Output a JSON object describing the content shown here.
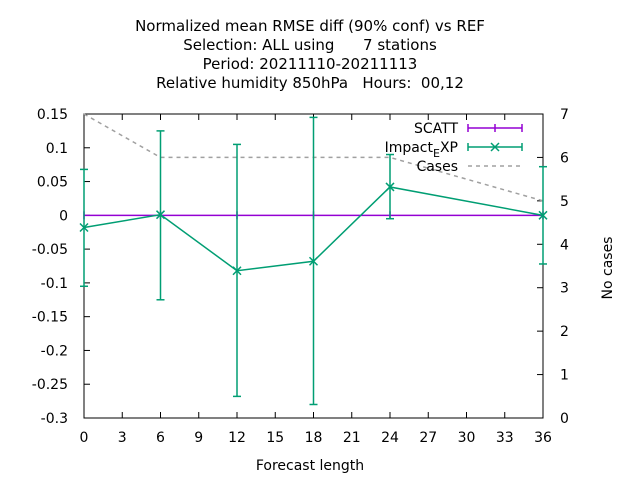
{
  "chart_data": {
    "type": "line",
    "title_lines": [
      "Normalized mean RMSE diff (90% conf) vs REF",
      "Selection: ALL using      7 stations",
      "Period: 20211110-20211113",
      "Relative humidity 850hPa   Hours:  00,12"
    ],
    "xlabel": "Forecast length",
    "ylabel": "",
    "y2label": "No cases",
    "xlim": [
      0,
      36
    ],
    "ylim": [
      -0.3,
      0.15
    ],
    "y2lim": [
      0,
      7
    ],
    "xticks": [
      "0",
      "3",
      "6",
      "9",
      "12",
      "15",
      "18",
      "21",
      "24",
      "27",
      "30",
      "33",
      "36"
    ],
    "yticks": [
      "0.15",
      "0.1",
      "0.05",
      "0",
      "-0.05",
      "-0.1",
      "-0.15",
      "-0.2",
      "-0.25",
      "-0.3"
    ],
    "y2ticks": [
      "7",
      "6",
      "5",
      "4",
      "3",
      "2",
      "1",
      "0"
    ],
    "legend_position": "top-right",
    "series": [
      {
        "name": "SCATT",
        "color": "#9400d3",
        "x": [
          0,
          6,
          12,
          18,
          24,
          36
        ],
        "y": [
          0,
          0,
          0,
          0,
          0,
          0
        ]
      },
      {
        "name": "Impact",
        "name_sub": "E",
        "name_suffix": "XP",
        "color": "#009e73",
        "x": [
          0,
          6,
          12,
          18,
          24,
          36
        ],
        "y": [
          -0.018,
          0.001,
          -0.082,
          -0.068,
          0.042,
          0.0
        ],
        "err_low": [
          -0.105,
          -0.125,
          -0.268,
          -0.28,
          -0.005,
          -0.072
        ],
        "err_high": [
          0.068,
          0.125,
          0.105,
          0.145,
          0.09,
          0.072
        ]
      },
      {
        "name": "Cases",
        "color": "#a0a0a0",
        "axis": "y2",
        "x": [
          0,
          6,
          12,
          18,
          24,
          36
        ],
        "y": [
          7,
          6,
          6,
          6,
          6,
          5
        ]
      }
    ]
  }
}
